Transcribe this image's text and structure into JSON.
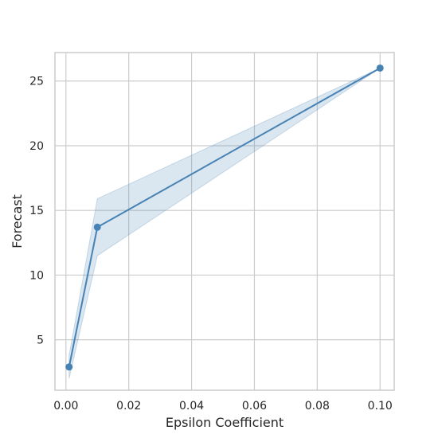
{
  "chart_data": {
    "type": "line",
    "xlabel": "Epsilon Coefficient",
    "ylabel": "Forecast",
    "xlim": [
      -0.0035,
      0.1045
    ],
    "ylim": [
      1.1,
      27.2
    ],
    "xticks": [
      0.0,
      0.02,
      0.04,
      0.06,
      0.08,
      0.1
    ],
    "xtick_labels": [
      "0.00",
      "0.02",
      "0.04",
      "0.06",
      "0.08",
      "0.10"
    ],
    "yticks": [
      5,
      10,
      15,
      20,
      25
    ],
    "ytick_labels": [
      "5",
      "10",
      "15",
      "20",
      "25"
    ],
    "grid": true,
    "series": [
      {
        "x": [
          0.001,
          0.01,
          0.1
        ],
        "y": [
          2.9,
          13.7,
          26.0
        ],
        "ci_lower": [
          2.0,
          11.5,
          26.0
        ],
        "ci_upper": [
          3.8,
          15.9,
          26.0
        ]
      }
    ],
    "colors": {
      "line": "#4682b4",
      "band": "#4682b4",
      "grid": "#cccccc",
      "text": "#262626"
    }
  }
}
